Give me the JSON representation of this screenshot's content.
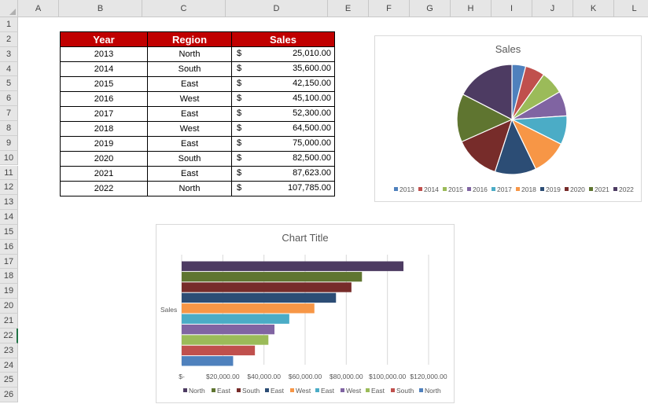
{
  "columns": [
    "A",
    "B",
    "C",
    "D",
    "E",
    "F",
    "G",
    "H",
    "I",
    "J",
    "K",
    "L"
  ],
  "rows": [
    "1",
    "2",
    "3",
    "4",
    "5",
    "6",
    "7",
    "8",
    "9",
    "10",
    "11",
    "12",
    "13",
    "14",
    "15",
    "16",
    "17",
    "18",
    "19",
    "20",
    "21",
    "22",
    "23",
    "24",
    "25",
    "26"
  ],
  "table": {
    "headers": {
      "year": "Year",
      "region": "Region",
      "sales": "Sales"
    },
    "currency": "$",
    "rows": [
      {
        "year": "2013",
        "region": "North",
        "sales": "25,010.00"
      },
      {
        "year": "2014",
        "region": "South",
        "sales": "35,600.00"
      },
      {
        "year": "2015",
        "region": "East",
        "sales": "42,150.00"
      },
      {
        "year": "2016",
        "region": "West",
        "sales": "45,100.00"
      },
      {
        "year": "2017",
        "region": "East",
        "sales": "52,300.00"
      },
      {
        "year": "2018",
        "region": "West",
        "sales": "64,500.00"
      },
      {
        "year": "2019",
        "region": "East",
        "sales": "75,000.00"
      },
      {
        "year": "2020",
        "region": "South",
        "sales": "82,500.00"
      },
      {
        "year": "2021",
        "region": "East",
        "sales": "87,623.00"
      },
      {
        "year": "2022",
        "region": "North",
        "sales": "107,785.00"
      }
    ]
  },
  "colors": [
    "#4f81bd",
    "#c0504d",
    "#9bbb59",
    "#8064a2",
    "#4bacc6",
    "#f79646",
    "#2c4d75",
    "#772c2a",
    "#5f7530",
    "#4d3b62"
  ],
  "chart_data": [
    {
      "type": "pie",
      "title": "Sales",
      "categories": [
        "2013",
        "2014",
        "2015",
        "2016",
        "2017",
        "2018",
        "2019",
        "2020",
        "2021",
        "2022"
      ],
      "values": [
        25010,
        35600,
        42150,
        45100,
        52300,
        64500,
        75000,
        82500,
        87623,
        107785
      ],
      "legend": "bottom"
    },
    {
      "type": "bar",
      "orientation": "horizontal",
      "title": "Chart Title",
      "ylabel": "Sales",
      "categories": [
        "North",
        "East",
        "South",
        "East",
        "West",
        "East",
        "West",
        "East",
        "South",
        "North"
      ],
      "values": [
        107785,
        87623,
        82500,
        75000,
        64500,
        52300,
        45100,
        42150,
        35600,
        25010
      ],
      "xlim": [
        0,
        120000
      ],
      "xticks": [
        "$-",
        "$20,000.00",
        "$40,000.00",
        "$60,000.00",
        "$80,000.00",
        "$100,000.00",
        "$120,000.00"
      ],
      "legend": "bottom",
      "grid": true
    }
  ]
}
